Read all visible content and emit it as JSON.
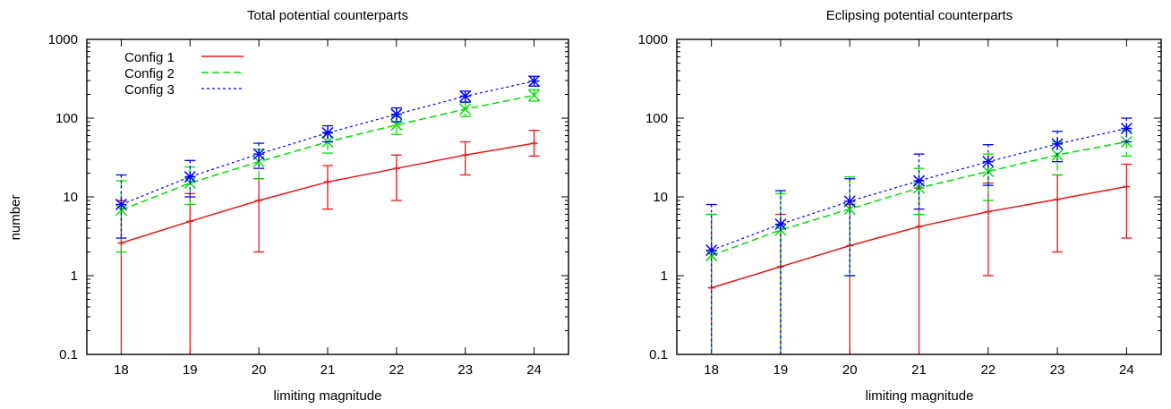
{
  "chart_data": [
    {
      "type": "line",
      "title": "Total potential counterparts",
      "xlabel": "limiting magnitude",
      "ylabel": "number",
      "x": [
        18,
        19,
        20,
        21,
        22,
        23,
        24
      ],
      "xlim": [
        17.5,
        24.5
      ],
      "ylim": [
        0.1,
        1000
      ],
      "yscale": "log",
      "ytick_labels": [
        "0.1",
        "1",
        "10",
        "100",
        "1000"
      ],
      "grid": false,
      "legend": "top-left",
      "series": [
        {
          "name": "Config 1",
          "color": "#e31a1c",
          "dash": "solid",
          "marker": "plus",
          "values": [
            2.6,
            4.9,
            9.0,
            15.5,
            23.0,
            34.0,
            48.0
          ],
          "err_low": [
            0.01,
            0.01,
            2.0,
            7.0,
            9.0,
            19.0,
            33.0
          ],
          "err_high": [
            9.0,
            11.0,
            17.0,
            25.0,
            34.0,
            50.0,
            70.0
          ]
        },
        {
          "name": "Config 2",
          "color": "#00dd00",
          "dash": "long",
          "marker": "x",
          "values": [
            6.8,
            15.0,
            28.0,
            50.0,
            82.0,
            130.0,
            195.0
          ],
          "err_low": [
            2.0,
            8.0,
            17.0,
            36.0,
            62.0,
            105.0,
            165.0
          ],
          "err_high": [
            16.0,
            24.0,
            40.0,
            66.0,
            104.0,
            158.0,
            230.0
          ]
        },
        {
          "name": "Config 3",
          "color": "#0000ff",
          "dash": "short",
          "marker": "star",
          "values": [
            8.0,
            18.0,
            35.0,
            65.0,
            112.0,
            190.0,
            295.0
          ],
          "err_low": [
            3.0,
            10.0,
            23.0,
            50.0,
            90.0,
            160.0,
            255.0
          ],
          "err_high": [
            19.0,
            29.0,
            48.0,
            80.0,
            135.0,
            220.0,
            340.0
          ]
        }
      ]
    },
    {
      "type": "line",
      "title": "Eclipsing potential counterparts",
      "xlabel": "limiting magnitude",
      "ylabel": "",
      "x": [
        18,
        19,
        20,
        21,
        22,
        23,
        24
      ],
      "xlim": [
        17.5,
        24.5
      ],
      "ylim": [
        0.1,
        1000
      ],
      "yscale": "log",
      "ytick_labels": [
        "0.1",
        "1",
        "10",
        "100",
        "1000"
      ],
      "grid": false,
      "legend": "none",
      "series": [
        {
          "name": "Config 1",
          "color": "#e31a1c",
          "dash": "solid",
          "marker": "plus",
          "values": [
            0.7,
            1.3,
            2.4,
            4.2,
            6.5,
            9.3,
            13.5
          ],
          "err_low": [
            0.01,
            0.01,
            0.01,
            0.01,
            1.0,
            2.0,
            3.0
          ],
          "err_high": [
            6.0,
            6.0,
            8.0,
            13.0,
            15.0,
            19.0,
            26.0
          ]
        },
        {
          "name": "Config 2",
          "color": "#00dd00",
          "dash": "long",
          "marker": "x",
          "values": [
            1.8,
            3.8,
            7.0,
            13.0,
            21.0,
            34.0,
            50.0
          ],
          "err_low": [
            0.01,
            0.01,
            1.0,
            6.0,
            9.0,
            19.0,
            33.0
          ],
          "err_high": [
            6.0,
            11.0,
            18.0,
            23.0,
            35.0,
            50.0,
            70.0
          ]
        },
        {
          "name": "Config 3",
          "color": "#0000ff",
          "dash": "short",
          "marker": "star",
          "values": [
            2.1,
            4.5,
            8.8,
            16.0,
            28.0,
            47.0,
            74.0
          ],
          "err_low": [
            0.01,
            0.01,
            1.0,
            7.0,
            14.0,
            28.0,
            50.0
          ],
          "err_high": [
            8.0,
            12.0,
            17.0,
            35.0,
            46.0,
            68.0,
            100.0
          ]
        }
      ]
    }
  ]
}
